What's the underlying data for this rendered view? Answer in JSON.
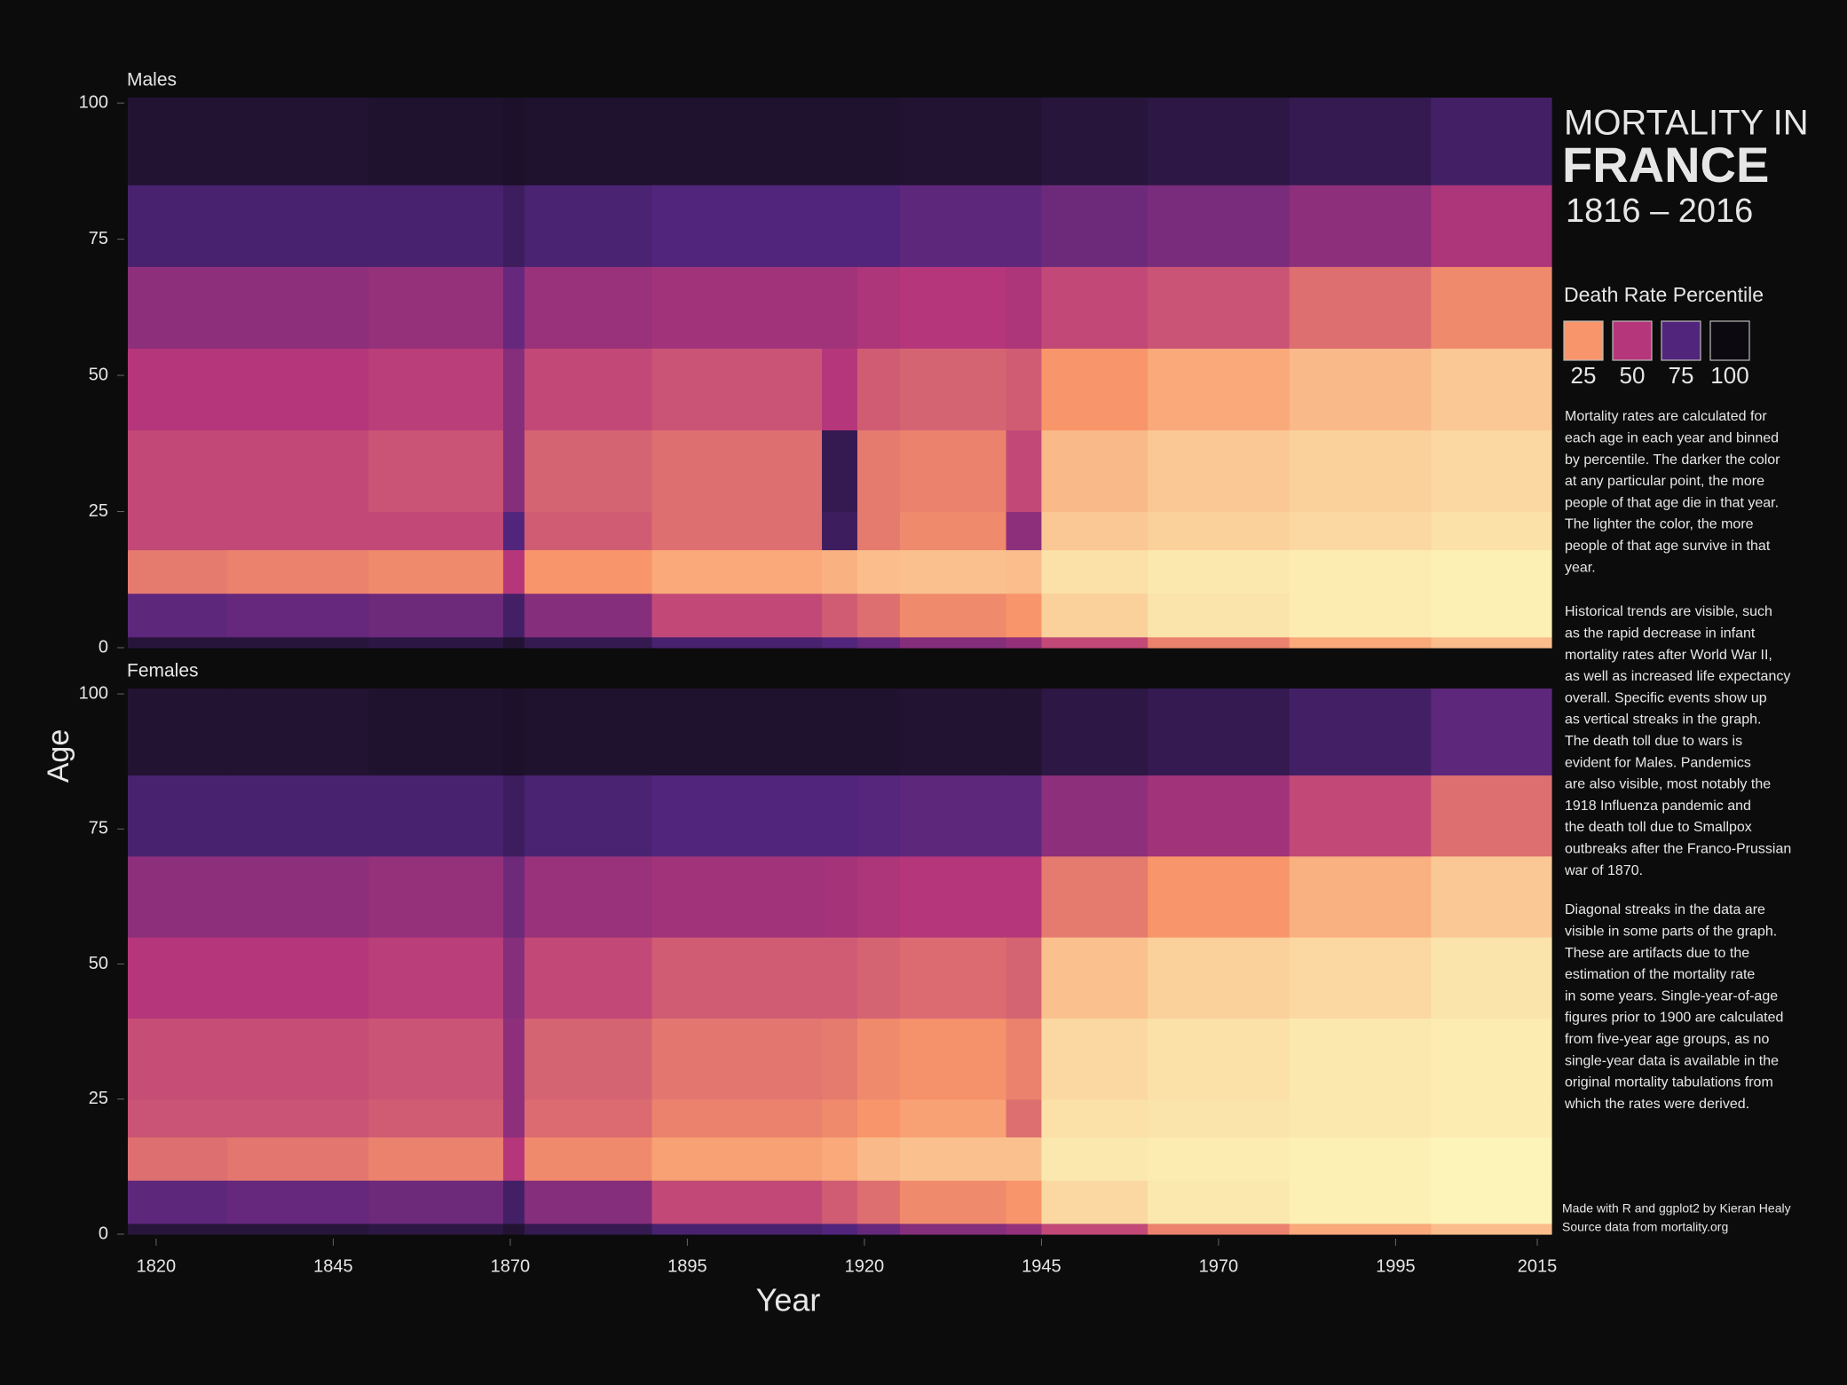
{
  "chart_data": {
    "type": "heatmap",
    "title": [
      "MORTALITY IN",
      "FRANCE",
      "1816 – 2016"
    ],
    "x_label": "Year",
    "y_label": "Age",
    "year_edges": [
      1816,
      1830,
      1850,
      1869,
      1872,
      1890,
      1914,
      1919,
      1925,
      1940,
      1945,
      1960,
      1980,
      2000,
      2017
    ],
    "age_edges": [
      0,
      2,
      10,
      18,
      25,
      40,
      55,
      70,
      85,
      101
    ],
    "xlim": [
      1816,
      2017
    ],
    "ylim": [
      0,
      101
    ],
    "xticks": [
      1820,
      1845,
      1870,
      1895,
      1920,
      1945,
      1970,
      1995,
      2015
    ],
    "yticks": [
      0,
      25,
      50,
      75,
      100
    ],
    "colorscale": [
      [
        0,
        "#fcf8bc"
      ],
      [
        25,
        "#f8956a"
      ],
      [
        50,
        "#b5367a"
      ],
      [
        75,
        "#51257c"
      ],
      [
        100,
        "#0c0a10"
      ]
    ],
    "legend": {
      "title": "Death Rate Percentile",
      "categories": [
        25,
        50,
        75,
        100
      ],
      "colors": [
        "#f8956a",
        "#b5367a",
        "#51257c",
        "#0c0a10"
      ]
    },
    "panels": [
      {
        "title": "Males",
        "values": [
          [
            90,
            72,
            32,
            45,
            45,
            50,
            60,
            78,
            92
          ],
          [
            90,
            70,
            30,
            45,
            45,
            50,
            60,
            78,
            92
          ],
          [
            88,
            68,
            28,
            45,
            42,
            48,
            58,
            78,
            93
          ],
          [
            92,
            80,
            50,
            75,
            62,
            62,
            70,
            82,
            94
          ],
          [
            85,
            62,
            25,
            40,
            38,
            45,
            57,
            77,
            93
          ],
          [
            78,
            45,
            20,
            35,
            35,
            42,
            55,
            75,
            93
          ],
          [
            75,
            40,
            18,
            82,
            85,
            50,
            55,
            75,
            93
          ],
          [
            70,
            35,
            15,
            32,
            32,
            40,
            52,
            75,
            93
          ],
          [
            62,
            28,
            14,
            28,
            30,
            38,
            50,
            72,
            92
          ],
          [
            58,
            25,
            15,
            60,
            45,
            40,
            52,
            72,
            92
          ],
          [
            45,
            10,
            6,
            12,
            16,
            25,
            45,
            68,
            90
          ],
          [
            30,
            5,
            4,
            10,
            12,
            20,
            42,
            65,
            88
          ],
          [
            20,
            3,
            3,
            8,
            10,
            16,
            35,
            60,
            85
          ],
          [
            15,
            2,
            2,
            6,
            8,
            12,
            28,
            52,
            80
          ]
        ]
      },
      {
        "title": "Females",
        "values": [
          [
            90,
            72,
            35,
            42,
            44,
            50,
            60,
            78,
            92
          ],
          [
            90,
            70,
            33,
            42,
            44,
            50,
            60,
            78,
            92
          ],
          [
            88,
            68,
            30,
            40,
            42,
            48,
            58,
            78,
            93
          ],
          [
            92,
            80,
            50,
            60,
            60,
            62,
            68,
            82,
            94
          ],
          [
            85,
            62,
            28,
            36,
            38,
            45,
            57,
            77,
            93
          ],
          [
            78,
            45,
            22,
            30,
            33,
            40,
            55,
            75,
            93
          ],
          [
            75,
            40,
            20,
            28,
            32,
            40,
            54,
            75,
            93
          ],
          [
            70,
            35,
            16,
            25,
            28,
            38,
            52,
            74,
            93
          ],
          [
            62,
            28,
            14,
            22,
            26,
            36,
            50,
            72,
            92
          ],
          [
            58,
            25,
            14,
            35,
            30,
            38,
            50,
            72,
            92
          ],
          [
            45,
            8,
            4,
            6,
            8,
            14,
            32,
            60,
            88
          ],
          [
            30,
            4,
            3,
            5,
            6,
            10,
            25,
            55,
            85
          ],
          [
            20,
            2,
            2,
            4,
            4,
            8,
            18,
            45,
            80
          ],
          [
            15,
            1,
            1,
            3,
            3,
            5,
            12,
            35,
            72
          ]
        ]
      }
    ],
    "notes": [
      [
        "Mortality rates are calculated for",
        "each age in each year and binned",
        "by percentile. The darker the color",
        "at any particular point, the more",
        "people of that age die in that year.",
        "The lighter the color, the more",
        "people of that age survive in that",
        "year."
      ],
      [
        "Historical trends are visible, such",
        "as the rapid decrease in infant",
        "mortality rates after World War II,",
        "as well as increased life expectancy",
        "overall. Specific events show up",
        "as vertical streaks in the graph.",
        "The death toll due to wars is",
        "evident for Males. Pandemics",
        "are also visible, most notably the",
        "1918 Influenza pandemic and",
        "the death toll due to Smallpox",
        "outbreaks after the Franco-Prussian",
        "war of 1870."
      ],
      [
        "Diagonal streaks in the data are",
        "visible in some parts of the graph.",
        "These are artifacts due to the",
        "estimation of the mortality rate",
        "in some years. Single-year-of-age",
        "figures prior to 1900 are calculated",
        "from five-year age groups, as no",
        "single-year data is available in the",
        "original mortality tabulations from",
        "which the rates were derived."
      ]
    ],
    "credits": [
      "Made with R and ggplot2 by Kieran Healy",
      "Source data from mortality.org"
    ]
  }
}
